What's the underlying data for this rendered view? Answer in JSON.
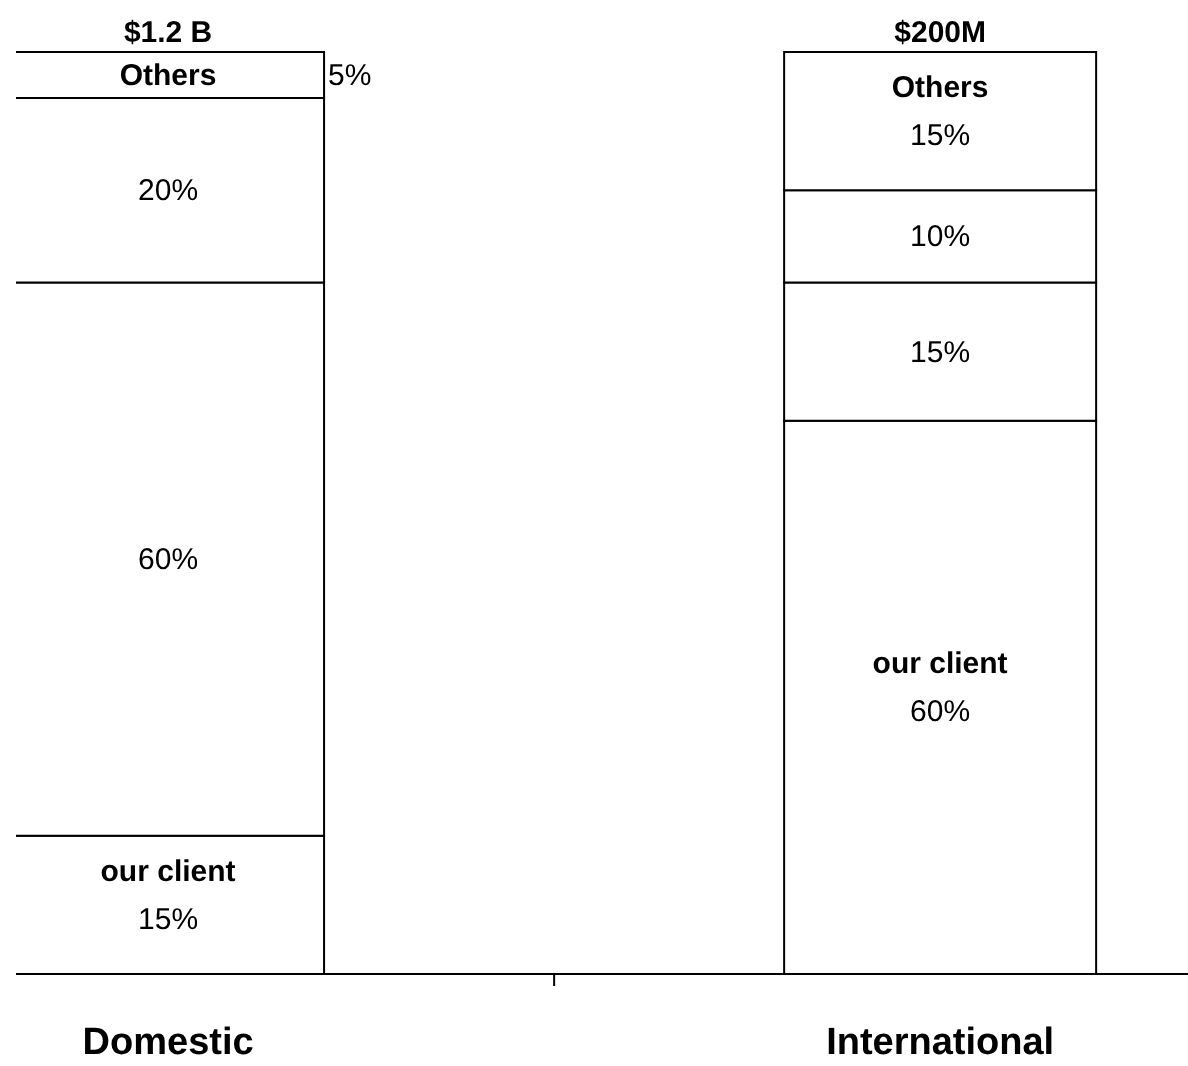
{
  "chart_data": {
    "type": "bar",
    "stacked": true,
    "categories": [
      "Domestic",
      "International"
    ],
    "annotations": [
      {
        "text": "$1.2 B",
        "x": "Domestic",
        "y": 100
      },
      {
        "text": "$200M",
        "x": "International",
        "y": 100
      }
    ],
    "series": [
      {
        "name": "our client",
        "color": "#ffffff",
        "values": [
          15,
          60
        ],
        "value_labels": [
          "15%",
          "60%"
        ]
      },
      {
        "color": "#ffffff",
        "values": [
          60,
          15
        ],
        "value_labels": [
          "60%",
          "15%"
        ]
      },
      {
        "color": "#ffffff",
        "values": [
          20,
          10
        ],
        "value_labels": [
          "20%",
          "10%"
        ]
      },
      {
        "name": "Others",
        "color": "#ffffff",
        "values": [
          5,
          15
        ],
        "value_labels": [
          "5%",
          "15%"
        ]
      }
    ]
  }
}
